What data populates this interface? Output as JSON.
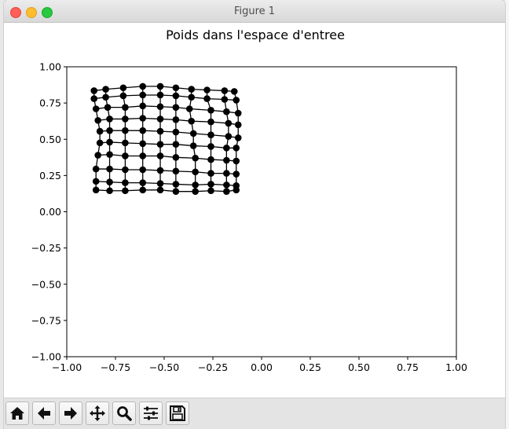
{
  "window": {
    "title": "Figure 1"
  },
  "toolbar": {
    "buttons": [
      {
        "name": "home-button",
        "icon": "home-icon"
      },
      {
        "name": "back-button",
        "icon": "arrow-left-icon"
      },
      {
        "name": "forward-button",
        "icon": "arrow-right-icon"
      },
      {
        "name": "pan-button",
        "icon": "move-icon"
      },
      {
        "name": "zoom-button",
        "icon": "magnifier-icon"
      },
      {
        "name": "configure-subplots-button",
        "icon": "sliders-icon"
      },
      {
        "name": "save-button",
        "icon": "floppy-icon"
      }
    ]
  },
  "chart_data": {
    "type": "scatter",
    "title": "Poids dans l'espace d'entree",
    "xlim": [
      -1.0,
      1.0
    ],
    "ylim": [
      -1.0,
      1.0
    ],
    "xticks": [
      "−1.00",
      "−0.75",
      "−0.50",
      "−0.25",
      "0.00",
      "0.25",
      "0.50",
      "0.75",
      "1.00"
    ],
    "yticks": [
      "1.00",
      "0.75",
      "0.50",
      "0.25",
      "0.00",
      "−0.25",
      "−0.50",
      "−0.75",
      "−1.00"
    ],
    "xtick_values": [
      -1.0,
      -0.75,
      -0.5,
      -0.25,
      0.0,
      0.25,
      0.5,
      0.75,
      1.0
    ],
    "ytick_values": [
      1.0,
      0.75,
      0.5,
      0.25,
      0.0,
      -0.25,
      -0.5,
      -0.75,
      -1.0
    ],
    "grid": false,
    "marker_color": "#000000",
    "line_color": "#000000",
    "grid_rows": [
      [
        [
          -0.86,
          0.835
        ],
        [
          -0.8,
          0.845
        ],
        [
          -0.71,
          0.855
        ],
        [
          -0.61,
          0.865
        ],
        [
          -0.52,
          0.865
        ],
        [
          -0.44,
          0.855
        ],
        [
          -0.36,
          0.845
        ],
        [
          -0.28,
          0.84
        ],
        [
          -0.19,
          0.835
        ],
        [
          -0.14,
          0.83
        ]
      ],
      [
        [
          -0.86,
          0.78
        ],
        [
          -0.8,
          0.79
        ],
        [
          -0.71,
          0.8
        ],
        [
          -0.61,
          0.805
        ],
        [
          -0.52,
          0.805
        ],
        [
          -0.44,
          0.8
        ],
        [
          -0.36,
          0.79
        ],
        [
          -0.28,
          0.78
        ],
        [
          -0.19,
          0.775
        ],
        [
          -0.13,
          0.77
        ]
      ],
      [
        [
          -0.85,
          0.71
        ],
        [
          -0.79,
          0.72
        ],
        [
          -0.7,
          0.72
        ],
        [
          -0.61,
          0.73
        ],
        [
          -0.52,
          0.725
        ],
        [
          -0.44,
          0.72
        ],
        [
          -0.37,
          0.71
        ],
        [
          -0.26,
          0.7
        ],
        [
          -0.18,
          0.69
        ],
        [
          -0.12,
          0.68
        ]
      ],
      [
        [
          -0.84,
          0.63
        ],
        [
          -0.78,
          0.64
        ],
        [
          -0.7,
          0.64
        ],
        [
          -0.61,
          0.645
        ],
        [
          -0.52,
          0.64
        ],
        [
          -0.44,
          0.635
        ],
        [
          -0.36,
          0.625
        ],
        [
          -0.26,
          0.62
        ],
        [
          -0.17,
          0.61
        ],
        [
          -0.12,
          0.6
        ]
      ],
      [
        [
          -0.83,
          0.555
        ],
        [
          -0.78,
          0.56
        ],
        [
          -0.7,
          0.56
        ],
        [
          -0.61,
          0.56
        ],
        [
          -0.52,
          0.555
        ],
        [
          -0.44,
          0.55
        ],
        [
          -0.35,
          0.54
        ],
        [
          -0.26,
          0.53
        ],
        [
          -0.17,
          0.52
        ],
        [
          -0.12,
          0.51
        ]
      ],
      [
        [
          -0.83,
          0.475
        ],
        [
          -0.78,
          0.48
        ],
        [
          -0.7,
          0.475
        ],
        [
          -0.61,
          0.47
        ],
        [
          -0.52,
          0.465
        ],
        [
          -0.44,
          0.465
        ],
        [
          -0.35,
          0.455
        ],
        [
          -0.26,
          0.45
        ],
        [
          -0.18,
          0.44
        ],
        [
          -0.13,
          0.44
        ]
      ],
      [
        [
          -0.84,
          0.39
        ],
        [
          -0.78,
          0.395
        ],
        [
          -0.7,
          0.385
        ],
        [
          -0.61,
          0.385
        ],
        [
          -0.52,
          0.385
        ],
        [
          -0.44,
          0.375
        ],
        [
          -0.34,
          0.37
        ],
        [
          -0.26,
          0.36
        ],
        [
          -0.18,
          0.355
        ],
        [
          -0.13,
          0.35
        ]
      ],
      [
        [
          -0.85,
          0.295
        ],
        [
          -0.78,
          0.295
        ],
        [
          -0.7,
          0.29
        ],
        [
          -0.61,
          0.29
        ],
        [
          -0.52,
          0.285
        ],
        [
          -0.44,
          0.28
        ],
        [
          -0.34,
          0.275
        ],
        [
          -0.26,
          0.265
        ],
        [
          -0.18,
          0.265
        ],
        [
          -0.13,
          0.26
        ]
      ],
      [
        [
          -0.85,
          0.21
        ],
        [
          -0.78,
          0.205
        ],
        [
          -0.7,
          0.2
        ],
        [
          -0.61,
          0.2
        ],
        [
          -0.52,
          0.195
        ],
        [
          -0.44,
          0.19
        ],
        [
          -0.34,
          0.185
        ],
        [
          -0.26,
          0.19
        ],
        [
          -0.18,
          0.185
        ],
        [
          -0.13,
          0.18
        ]
      ],
      [
        [
          -0.85,
          0.15
        ],
        [
          -0.78,
          0.145
        ],
        [
          -0.7,
          0.145
        ],
        [
          -0.61,
          0.15
        ],
        [
          -0.52,
          0.15
        ],
        [
          -0.44,
          0.14
        ],
        [
          -0.34,
          0.14
        ],
        [
          -0.26,
          0.145
        ],
        [
          -0.18,
          0.14
        ],
        [
          -0.13,
          0.15
        ]
      ]
    ]
  }
}
